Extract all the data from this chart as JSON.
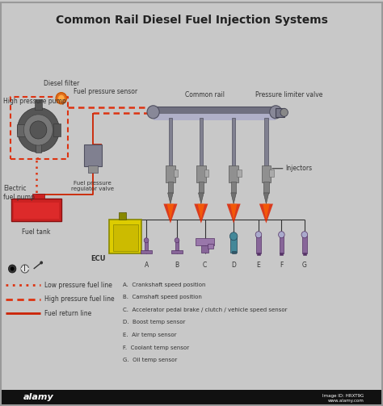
{
  "title": "Common Rail Diesel Fuel Injection Systems",
  "bg_color": "#c8c8c8",
  "title_color": "#222222",
  "sensor_labels": [
    "A.  Crankshaft speed position",
    "B.  Camshaft speed position",
    "C.  Accelerator pedal brake / clutch / vehicle speed sensor",
    "D.  Boost temp sensor",
    "E.  Air temp sensor",
    "F.  Coolant temp sensor",
    "G.  Oil temp sensor"
  ],
  "component_labels": {
    "title": "Common Rail Diesel Fuel Injection Systems",
    "diesel_filter": "Diesel filter",
    "high_pressure_pump": "High pressure pump",
    "fuel_pressure_sensor": "Fuel pressure sensor",
    "common_rail": "Common rail",
    "pressure_limiter_valve": "Pressure limiter valve",
    "fuel_pressure_regulator": "Fuel pressure\nregulator valve",
    "injectors": "Injectors",
    "electric_fuel_pump": "Electric\nfuel pump",
    "fuel_tank": "Fuel tank",
    "ecu": "ECU"
  },
  "colors": {
    "pump_body": "#555555",
    "filter_orange": "#e07020",
    "common_rail_top": "#707080",
    "fuel_tank_red": "#cc2222",
    "ecu_yellow": "#ddcc00",
    "ecu_dark": "#888800",
    "flame_red": "#dd2200",
    "flame_orange": "#ff6600",
    "sensor_purple": "#886699",
    "sensor_teal": "#448899",
    "line_low": "#dd3311",
    "line_high": "#dd3311",
    "line_return": "#cc2200",
    "label_color": "#333333",
    "border_color": "#999999"
  }
}
